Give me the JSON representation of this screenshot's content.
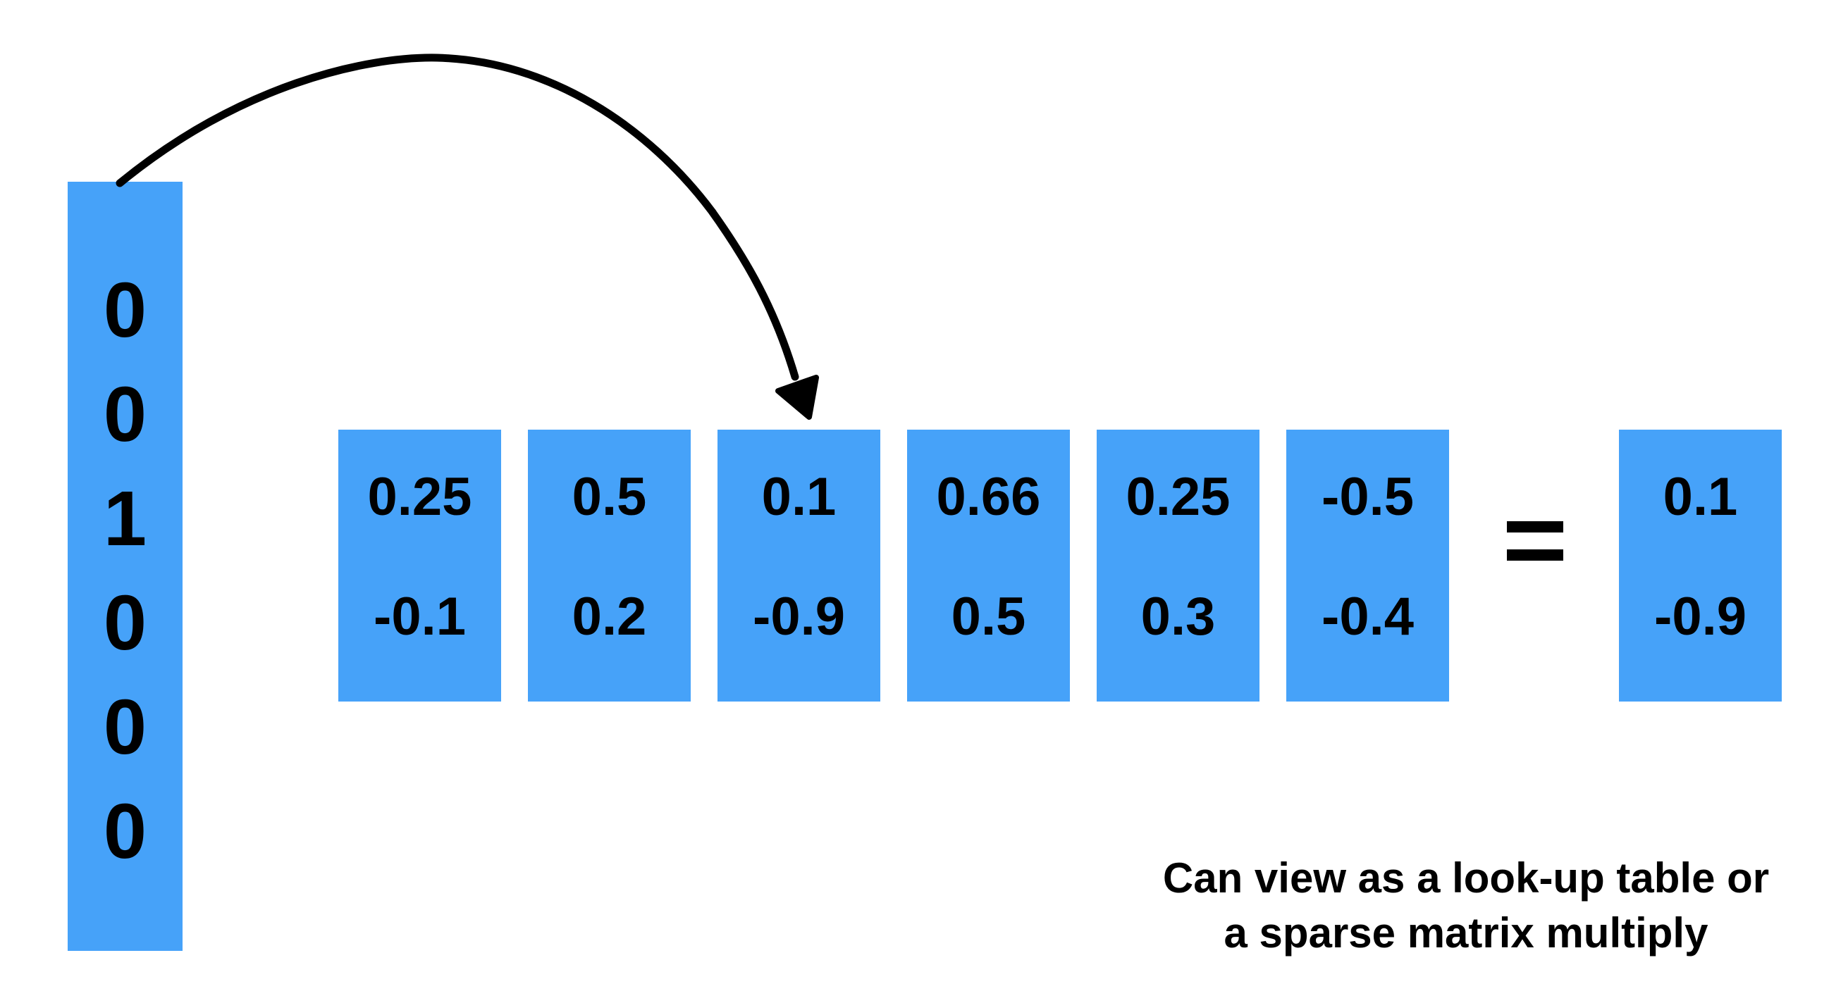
{
  "one_hot_vector": [
    "0",
    "0",
    "1",
    "0",
    "0",
    "0"
  ],
  "embedding_matrix": [
    [
      "0.25",
      "-0.1"
    ],
    [
      "0.5",
      "0.2"
    ],
    [
      "0.1",
      "-0.9"
    ],
    [
      "0.66",
      "0.5"
    ],
    [
      "0.25",
      "0.3"
    ],
    [
      "-0.5",
      "-0.4"
    ]
  ],
  "result_vector": [
    "0.1",
    "-0.9"
  ],
  "caption": {
    "line1": "Can view as a look-up table or",
    "line2": "a sparse matrix multiply"
  },
  "colors": {
    "box_fill": "#46a2f9",
    "text": "#000000",
    "background": "#ffffff"
  }
}
